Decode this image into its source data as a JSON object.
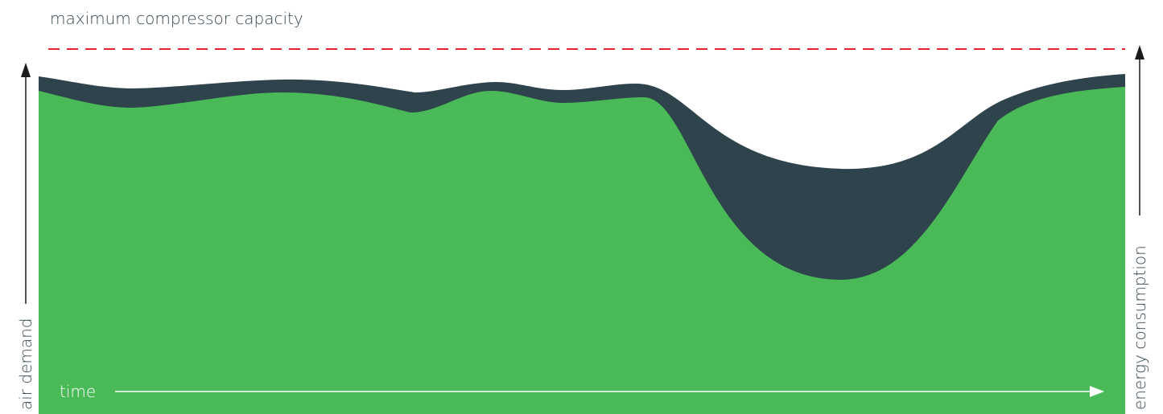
{
  "labels": {
    "capacity": "maximum compressor capacity",
    "y_left": "air demand",
    "y_right": "energy consumption",
    "x": "time"
  },
  "colors": {
    "capacity_line": "#e8232f",
    "air_demand_fill": "#4aba58",
    "energy_fill": "#2e434c",
    "axis_dark": "#1b1b1b",
    "time_axis": "#ffffff",
    "label_text": "#36474f"
  },
  "chart_data": {
    "type": "area",
    "title": "",
    "xlabel": "time",
    "ylabel": "air demand",
    "ylabel_right": "energy consumption",
    "x": [
      0,
      0.08,
      0.23,
      0.34,
      0.42,
      0.48,
      0.55,
      0.68,
      0.77,
      0.85,
      0.92,
      1.0
    ],
    "ylim": [
      0,
      1
    ],
    "reference_line": {
      "name": "maximum compressor capacity",
      "value": 1.0,
      "style": "dashed"
    },
    "series": [
      {
        "values": [
          0.88,
          0.83,
          0.88,
          0.83,
          0.88,
          0.85,
          0.86,
          0.41,
          0.37,
          0.6,
          0.83,
          0.88
        ]
      },
      {
        "values": [
          0.92,
          0.88,
          0.91,
          0.87,
          0.91,
          0.89,
          0.89,
          0.71,
          0.67,
          0.73,
          0.85,
          0.93
        ]
      }
    ]
  }
}
